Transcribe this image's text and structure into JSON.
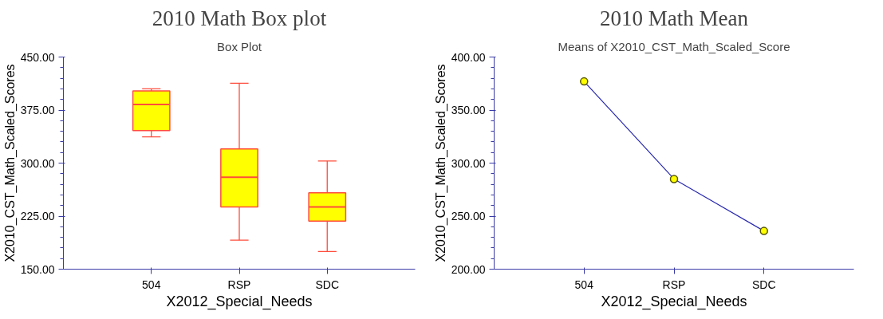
{
  "chart_data": [
    {
      "type": "box",
      "title": "2010 Math Box plot",
      "subtitle": "Box Plot",
      "xlabel": "X2012_Special_Needs",
      "ylabel": "X2010_CST_Math_Scaled_Scores",
      "categories": [
        "504",
        "RSP",
        "SDC"
      ],
      "boxes": [
        {
          "low": 337,
          "q1": 346,
          "median": 383,
          "q3": 402,
          "high": 405
        },
        {
          "low": 191,
          "q1": 238,
          "median": 280,
          "q3": 320,
          "high": 413
        },
        {
          "low": 175,
          "q1": 218,
          "median": 238,
          "q3": 258,
          "high": 303
        }
      ],
      "color": "#ffff00",
      "ylim": [
        150,
        450
      ],
      "yticks": [
        {
          "value": 150,
          "label": "150.00"
        },
        {
          "value": 165,
          "label": null
        },
        {
          "value": 180,
          "label": null
        },
        {
          "value": 195,
          "label": null
        },
        {
          "value": 210,
          "label": null
        },
        {
          "value": 225,
          "label": "225.00"
        },
        {
          "value": 240,
          "label": null
        },
        {
          "value": 255,
          "label": null
        },
        {
          "value": 270,
          "label": null
        },
        {
          "value": 285,
          "label": null
        },
        {
          "value": 300,
          "label": "300.00"
        },
        {
          "value": 315,
          "label": null
        },
        {
          "value": 330,
          "label": null
        },
        {
          "value": 345,
          "label": null
        },
        {
          "value": 360,
          "label": null
        },
        {
          "value": 375,
          "label": "375.00"
        },
        {
          "value": 390,
          "label": null
        },
        {
          "value": 405,
          "label": null
        },
        {
          "value": 420,
          "label": null
        },
        {
          "value": 435,
          "label": null
        },
        {
          "value": 450,
          "label": "450.00"
        }
      ],
      "grid": false
    },
    {
      "type": "line",
      "title": "2010 Math Mean",
      "subtitle": "Means of X2010_CST_Math_Scaled_Score",
      "xlabel": "X2012_Special_Needs",
      "ylabel": "X2010_CST_Math_Scaled_Scores",
      "categories": [
        "504",
        "RSP",
        "SDC"
      ],
      "series": [
        {
          "color": "#2a2ab0",
          "values": [
            377,
            285,
            236
          ]
        }
      ],
      "marker": "circle",
      "line_style": "solid",
      "ylim": [
        200,
        400
      ],
      "yticks": [
        {
          "value": 200,
          "label": "200.00"
        },
        {
          "value": 210,
          "label": null
        },
        {
          "value": 220,
          "label": null
        },
        {
          "value": 230,
          "label": null
        },
        {
          "value": 240,
          "label": null
        },
        {
          "value": 250,
          "label": "250.00"
        },
        {
          "value": 260,
          "label": null
        },
        {
          "value": 270,
          "label": null
        },
        {
          "value": 280,
          "label": null
        },
        {
          "value": 290,
          "label": null
        },
        {
          "value": 300,
          "label": "300.00"
        },
        {
          "value": 310,
          "label": null
        },
        {
          "value": 320,
          "label": null
        },
        {
          "value": 330,
          "label": null
        },
        {
          "value": 340,
          "label": null
        },
        {
          "value": 350,
          "label": "350.00"
        },
        {
          "value": 360,
          "label": null
        },
        {
          "value": 370,
          "label": null
        },
        {
          "value": 380,
          "label": null
        },
        {
          "value": 390,
          "label": null
        },
        {
          "value": 400,
          "label": "400.00"
        }
      ],
      "grid": false
    }
  ]
}
